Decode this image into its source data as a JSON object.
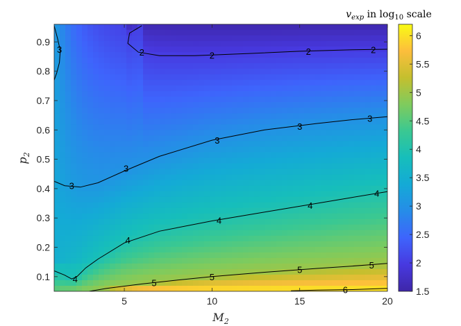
{
  "chart_data": {
    "type": "heatmap",
    "xlabel": "M",
    "xlabel_sub": "2",
    "ylabel": "p",
    "ylabel_sub": "2",
    "colorbar_title": {
      "var": "v",
      "var_sub": "exp",
      "middle": " in log",
      "middle_sub": "10",
      "end": " scale"
    },
    "xlim": [
      1,
      20
    ],
    "ylim": [
      0.05,
      0.96
    ],
    "x_ticks": [
      5,
      10,
      15,
      20
    ],
    "y_ticks": [
      0.1,
      0.2,
      0.3,
      0.4,
      0.5,
      0.6,
      0.7,
      0.8,
      0.9
    ],
    "colorbar_range": [
      1.5,
      6.2
    ],
    "colorbar_ticks": [
      1.5,
      2,
      2.5,
      3,
      3.5,
      4,
      4.5,
      5,
      5.5,
      6
    ],
    "colormap": "parula",
    "contour_levels": [
      {
        "level": 2,
        "label": "2",
        "points": [
          [
            6.0,
            0.955
          ],
          [
            5.3,
            0.93
          ],
          [
            5.2,
            0.895
          ],
          [
            5.8,
            0.865
          ],
          [
            7,
            0.853
          ],
          [
            9,
            0.853
          ],
          [
            12,
            0.86
          ],
          [
            15,
            0.868
          ],
          [
            18,
            0.873
          ],
          [
            20,
            0.875
          ]
        ],
        "label_positions": [
          [
            6.0,
            0.865
          ],
          [
            10.0,
            0.855
          ],
          [
            15.5,
            0.868
          ],
          [
            19.2,
            0.874
          ]
        ]
      },
      {
        "level": 3,
        "label": "3",
        "points": [
          [
            1.0,
            0.955
          ],
          [
            1.2,
            0.91
          ],
          [
            1.35,
            0.87
          ],
          [
            1.3,
            0.83
          ],
          [
            1.15,
            0.795
          ],
          [
            1.0,
            0.77
          ]
        ],
        "label_positions": [
          [
            1.3,
            0.875
          ]
        ]
      },
      {
        "level": 3,
        "label": "3",
        "points": [
          [
            1.0,
            0.425
          ],
          [
            1.6,
            0.41
          ],
          [
            2.5,
            0.405
          ],
          [
            3.5,
            0.42
          ],
          [
            5,
            0.46
          ],
          [
            7,
            0.51
          ],
          [
            10,
            0.565
          ],
          [
            13,
            0.6
          ],
          [
            16,
            0.622
          ],
          [
            18,
            0.635
          ],
          [
            20,
            0.645
          ]
        ],
        "label_positions": [
          [
            2.0,
            0.41
          ],
          [
            5.1,
            0.47
          ],
          [
            10.3,
            0.565
          ],
          [
            15.0,
            0.612
          ],
          [
            19.0,
            0.64
          ]
        ]
      },
      {
        "level": 4,
        "label": "4",
        "points": [
          [
            1.0,
            0.12
          ],
          [
            1.6,
            0.105
          ],
          [
            2.0,
            0.092
          ],
          [
            2.3,
            0.1
          ],
          [
            2.8,
            0.13
          ],
          [
            3.5,
            0.16
          ],
          [
            5,
            0.215
          ],
          [
            7,
            0.255
          ],
          [
            10,
            0.29
          ],
          [
            13,
            0.32
          ],
          [
            16,
            0.35
          ],
          [
            18,
            0.37
          ],
          [
            20,
            0.39
          ]
        ],
        "label_positions": [
          [
            2.2,
            0.093
          ],
          [
            5.2,
            0.225
          ],
          [
            10.4,
            0.292
          ],
          [
            15.6,
            0.343
          ],
          [
            19.4,
            0.385
          ]
        ]
      },
      {
        "level": 5,
        "label": "5",
        "points": [
          [
            3.0,
            0.05
          ],
          [
            4,
            0.06
          ],
          [
            6,
            0.075
          ],
          [
            8,
            0.088
          ],
          [
            10,
            0.1
          ],
          [
            13,
            0.115
          ],
          [
            16,
            0.128
          ],
          [
            18,
            0.136
          ],
          [
            20,
            0.145
          ]
        ],
        "label_positions": [
          [
            6.7,
            0.079
          ],
          [
            10.0,
            0.1
          ],
          [
            15.0,
            0.125
          ],
          [
            19.1,
            0.14
          ]
        ]
      },
      {
        "level": 6,
        "label": "6",
        "points": [
          [
            14.5,
            0.052
          ],
          [
            16,
            0.054
          ],
          [
            18,
            0.056
          ],
          [
            20,
            0.06
          ]
        ],
        "label_positions": [
          [
            17.6,
            0.056
          ]
        ]
      }
    ]
  }
}
